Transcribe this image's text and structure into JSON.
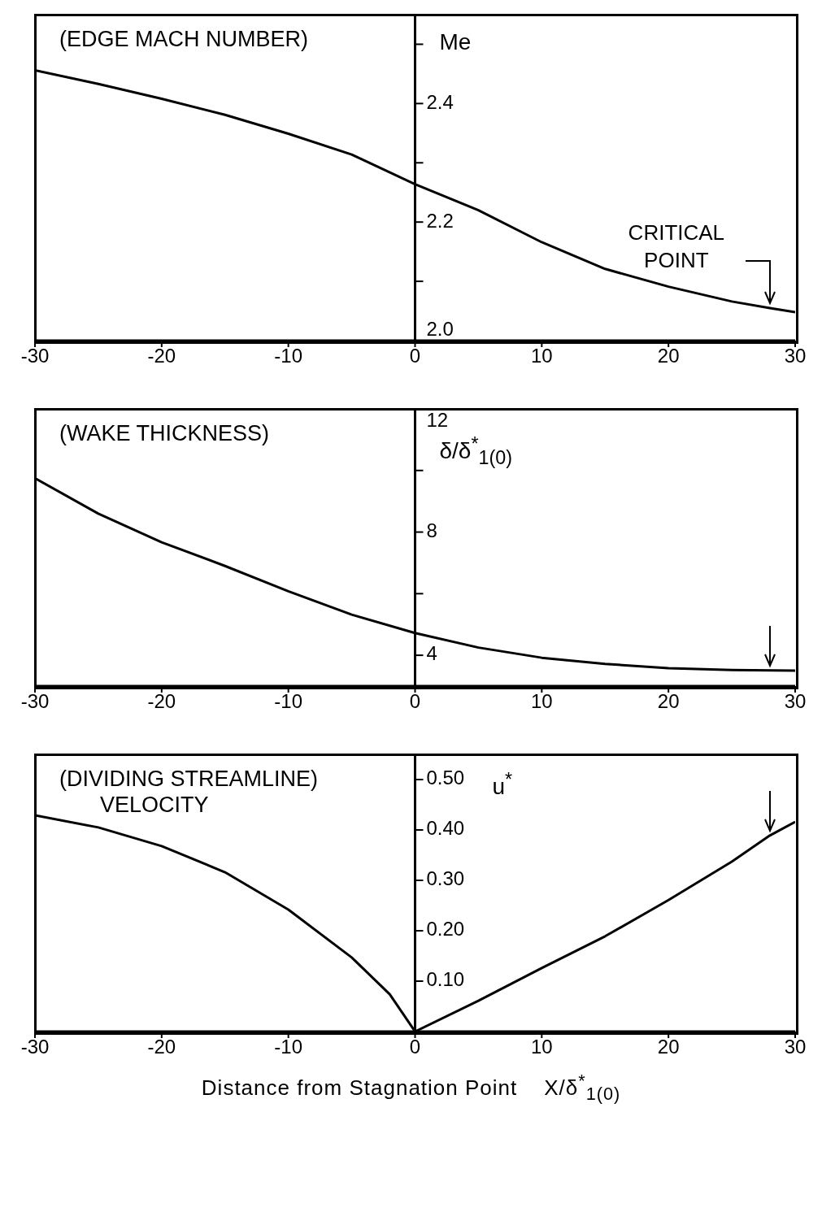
{
  "chart_data": [
    {
      "type": "line",
      "title": "(EDGE MACH NUMBER)",
      "ylabel": "Me",
      "marker": "none",
      "line_style": "solid",
      "grid": false,
      "legend": false,
      "x": [
        -30,
        -25,
        -20,
        -15,
        -10,
        -5,
        0,
        5,
        10,
        15,
        20,
        25,
        28,
        30
      ],
      "series": [
        {
          "color": "#000000",
          "values": [
            2.456,
            2.433,
            2.408,
            2.381,
            2.349,
            2.314,
            2.264,
            2.22,
            2.166,
            2.121,
            2.091,
            2.066,
            2.055,
            2.048
          ]
        }
      ],
      "xlim": [
        -30,
        30
      ],
      "xticks": [
        -30,
        -20,
        -10,
        0,
        10,
        20,
        30
      ],
      "ylim": [
        2.0,
        2.55
      ],
      "yticks": [
        {
          "value": 2.0,
          "label": "2.0"
        },
        {
          "value": 2.1,
          "label": null
        },
        2.2,
        {
          "value": 2.3,
          "label": null
        },
        2.4,
        {
          "value": 2.5,
          "label": null
        }
      ],
      "annotations": [
        {
          "text": "CRITICAL POINT",
          "x": 28,
          "y": 2.055
        }
      ]
    },
    {
      "type": "line",
      "title": "(WAKE THICKNESS)",
      "ylabel": "δ/δ$^{*}$$_{1(0)}$",
      "marker": "none",
      "line_style": "solid",
      "grid": false,
      "legend": false,
      "x": [
        -30,
        -25,
        -20,
        -15,
        -10,
        -5,
        0,
        5,
        10,
        15,
        20,
        25,
        30
      ],
      "series": [
        {
          "color": "#000000",
          "values": [
            9.75,
            8.6,
            7.67,
            6.9,
            6.08,
            5.32,
            4.72,
            4.25,
            3.92,
            3.72,
            3.58,
            3.52,
            3.5
          ]
        }
      ],
      "xlim": [
        -30,
        30
      ],
      "xticks": [
        -30,
        -20,
        -10,
        0,
        10,
        20,
        30
      ],
      "ylim": [
        3,
        12
      ],
      "yticks": [
        4,
        {
          "value": 6,
          "label": null
        },
        8,
        {
          "value": 10,
          "label": null
        },
        12
      ]
    },
    {
      "type": "line",
      "title": "(DIVIDING STREAMLINE)",
      "subtitle": "VELOCITY",
      "ylabel": "u$^{*}$",
      "xlabel": "Distance from Stagnation Point    X/δ$^{*}$$_{1(0)}$",
      "marker": "none",
      "line_style": "solid",
      "grid": false,
      "legend": false,
      "x": [
        -30,
        -25,
        -20,
        -15,
        -10,
        -5,
        -2,
        0,
        5,
        10,
        15,
        20,
        25,
        28,
        30
      ],
      "series": [
        {
          "color": "#000000",
          "values": [
            0.429,
            0.405,
            0.368,
            0.316,
            0.242,
            0.147,
            0.074,
            0,
            0.061,
            0.126,
            0.189,
            0.261,
            0.337,
            0.389,
            0.416
          ]
        }
      ],
      "xlim": [
        -30,
        30
      ],
      "xticks": [
        -30,
        -20,
        -10,
        0,
        10,
        20,
        30
      ],
      "ylim": [
        0,
        0.55
      ],
      "yticks": [
        {
          "value": 0.1,
          "label": "0.10"
        },
        {
          "value": 0.2,
          "label": "0.20"
        },
        {
          "value": 0.3,
          "label": "0.30"
        },
        {
          "value": 0.4,
          "label": "0.40"
        },
        {
          "value": 0.5,
          "label": "0.50"
        }
      ]
    }
  ]
}
